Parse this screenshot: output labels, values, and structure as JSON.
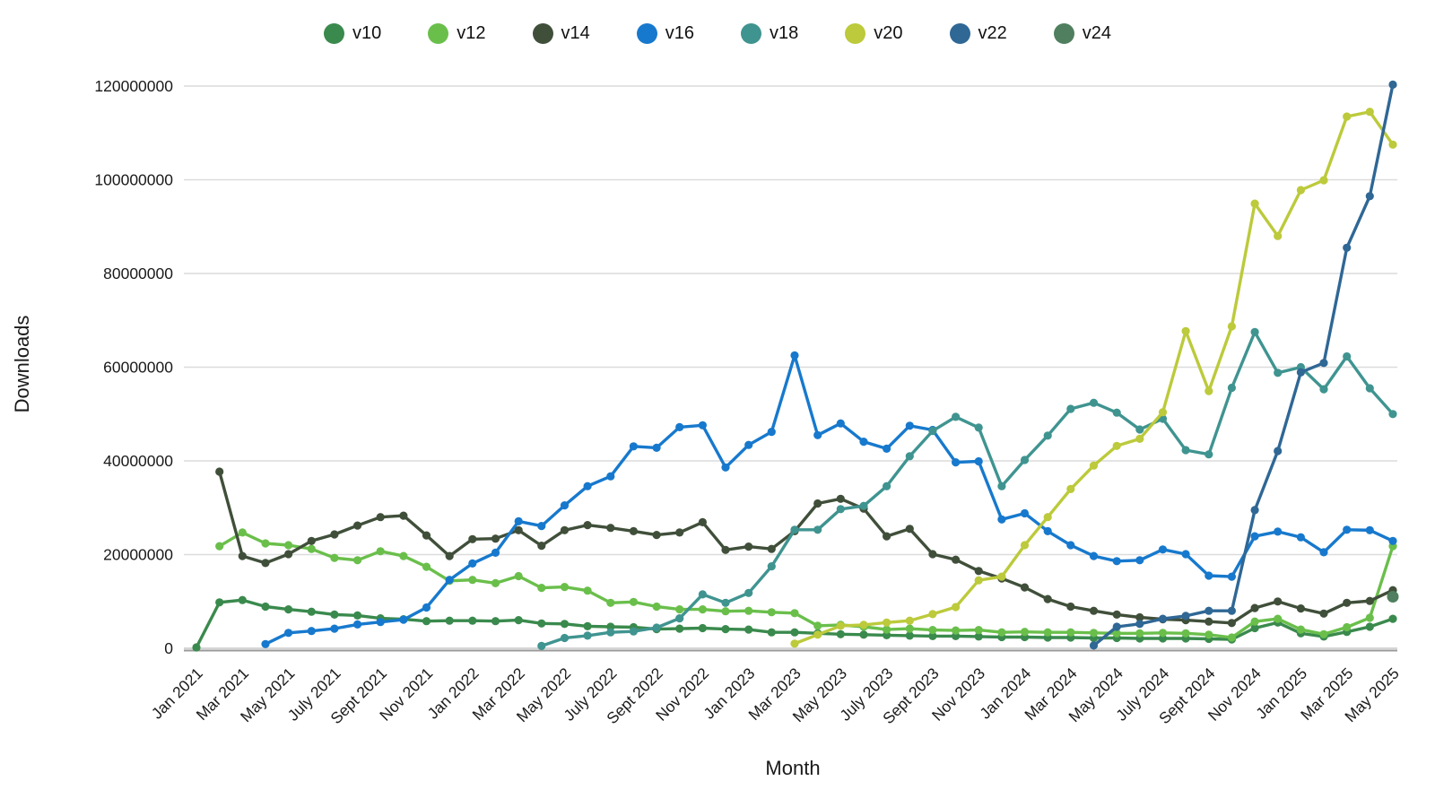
{
  "chart_data": {
    "type": "line",
    "title": "",
    "xlabel": "Month",
    "ylabel": "Downloads",
    "ylim": [
      0,
      120000000
    ],
    "y_ticks": [
      0,
      20000000,
      40000000,
      60000000,
      80000000,
      100000000,
      120000000
    ],
    "grid": "horizontal",
    "legend_position": "top-center",
    "x_tick_labels": [
      "Jan 2021",
      "Mar 2021",
      "May 2021",
      "July 2021",
      "Sept 2021",
      "Nov 2021",
      "Jan 2022",
      "Mar 2022",
      "May 2022",
      "July 2022",
      "Sept 2022",
      "Nov 2022",
      "Jan 2023",
      "Mar 2023",
      "May 2023",
      "July 2023",
      "Sept 2023",
      "Nov 2023",
      "Jan 2024",
      "Mar 2024",
      "May 2024",
      "July 2024",
      "Sept 2024",
      "Nov 2024",
      "Jan 2025",
      "Mar 2025",
      "May 2025"
    ],
    "x_tick_every": 2,
    "month_count": 53,
    "x_range_label": "Jan 2021 to May 2025, monthly",
    "series": [
      {
        "name": "v10",
        "color": "#3a8a4d",
        "values": [
          200000,
          9800000,
          10300000,
          8900000,
          8300000,
          7800000,
          7200000,
          7000000,
          6400000,
          6200000,
          5800000,
          5900000,
          5900000,
          5800000,
          6000000,
          5300000,
          5200000,
          4700000,
          4600000,
          4500000,
          4100000,
          4200000,
          4300000,
          4100000,
          4000000,
          3400000,
          3400000,
          3200000,
          3000000,
          2900000,
          2800000,
          2700000,
          2600000,
          2600000,
          2500000,
          2400000,
          2400000,
          2300000,
          2300000,
          2200000,
          2200000,
          2100000,
          2100000,
          2100000,
          2000000,
          1900000,
          4300000,
          5500000,
          3200000,
          2500000,
          3500000,
          4600000,
          6300000
        ]
      },
      {
        "name": "v12",
        "color": "#6abf4b",
        "values": [
          null,
          21800000,
          24700000,
          22400000,
          22000000,
          21200000,
          19300000,
          18800000,
          20700000,
          19700000,
          17400000,
          14400000,
          14600000,
          13900000,
          15400000,
          12900000,
          13100000,
          12300000,
          9700000,
          9900000,
          8900000,
          8300000,
          8300000,
          7900000,
          8000000,
          7700000,
          7500000,
          4800000,
          5000000,
          4600000,
          4000000,
          4200000,
          3900000,
          3800000,
          3900000,
          3400000,
          3500000,
          3400000,
          3400000,
          3300000,
          3200000,
          3200000,
          3300000,
          3200000,
          2900000,
          2300000,
          5700000,
          6300000,
          4000000,
          3000000,
          4500000,
          6500000,
          21800000
        ]
      },
      {
        "name": "v14",
        "color": "#404f3a",
        "values": [
          null,
          37700000,
          19700000,
          18200000,
          20100000,
          22900000,
          24300000,
          26200000,
          28000000,
          28300000,
          24100000,
          19700000,
          23300000,
          23400000,
          25200000,
          21900000,
          25200000,
          26300000,
          25700000,
          25000000,
          24200000,
          24700000,
          26900000,
          21000000,
          21700000,
          21200000,
          25000000,
          30900000,
          31900000,
          29800000,
          23900000,
          25500000,
          20100000,
          18900000,
          16500000,
          14900000,
          13000000,
          10500000,
          8900000,
          8000000,
          7200000,
          6600000,
          6200000,
          6000000,
          5700000,
          5400000,
          8600000,
          10000000,
          8500000,
          7400000,
          9700000,
          10100000,
          12400000
        ]
      },
      {
        "name": "v16",
        "color": "#1779cd",
        "values": [
          null,
          null,
          null,
          900000,
          3300000,
          3700000,
          4200000,
          5100000,
          5600000,
          6100000,
          8700000,
          14600000,
          18100000,
          20400000,
          27100000,
          26100000,
          30500000,
          34600000,
          36700000,
          43100000,
          42800000,
          47200000,
          47600000,
          38600000,
          43400000,
          46200000,
          62500000,
          45500000,
          48000000,
          44100000,
          42600000,
          47500000,
          46600000,
          39700000,
          39900000,
          27500000,
          28800000,
          25000000,
          22000000,
          19700000,
          18600000,
          18800000,
          21100000,
          20100000,
          15500000,
          15300000,
          23900000,
          24900000,
          23700000,
          20500000,
          25300000,
          25200000,
          22900000
        ]
      },
      {
        "name": "v18",
        "color": "#3f9490",
        "values": [
          null,
          null,
          null,
          null,
          null,
          null,
          null,
          null,
          null,
          null,
          null,
          null,
          null,
          null,
          null,
          500000,
          2200000,
          2700000,
          3400000,
          3600000,
          4400000,
          6400000,
          11500000,
          9700000,
          11800000,
          17500000,
          25300000,
          25300000,
          29700000,
          30400000,
          34600000,
          41000000,
          46400000,
          49400000,
          47100000,
          34600000,
          40200000,
          45400000,
          51100000,
          52400000,
          50300000,
          46700000,
          49000000,
          42300000,
          41400000,
          55600000,
          67500000,
          58800000,
          60000000,
          55300000,
          62300000,
          55500000,
          50000000
        ]
      },
      {
        "name": "v20",
        "color": "#bcca3b",
        "values": [
          null,
          null,
          null,
          null,
          null,
          null,
          null,
          null,
          null,
          null,
          null,
          null,
          null,
          null,
          null,
          null,
          null,
          null,
          null,
          null,
          null,
          null,
          null,
          null,
          null,
          null,
          1000000,
          2900000,
          4800000,
          5000000,
          5500000,
          5900000,
          7300000,
          8800000,
          14500000,
          15300000,
          22000000,
          28000000,
          34000000,
          39000000,
          43200000,
          44700000,
          50400000,
          67700000,
          54900000,
          68700000,
          94900000,
          88000000,
          97800000,
          99900000,
          113500000,
          114500000,
          107500000
        ]
      },
      {
        "name": "v22",
        "color": "#2f6795",
        "values": [
          null,
          null,
          null,
          null,
          null,
          null,
          null,
          null,
          null,
          null,
          null,
          null,
          null,
          null,
          null,
          null,
          null,
          null,
          null,
          null,
          null,
          null,
          null,
          null,
          null,
          null,
          null,
          null,
          null,
          null,
          null,
          null,
          null,
          null,
          null,
          null,
          null,
          null,
          null,
          600000,
          4600000,
          5200000,
          6300000,
          6900000,
          8000000,
          8000000,
          29500000,
          42100000,
          58900000,
          60900000,
          85500000,
          96500000,
          120300000
        ]
      },
      {
        "name": "v24",
        "color": "#4f7f5e",
        "values": [
          null,
          null,
          null,
          null,
          null,
          null,
          null,
          null,
          null,
          null,
          null,
          null,
          null,
          null,
          null,
          null,
          null,
          null,
          null,
          null,
          null,
          null,
          null,
          null,
          null,
          null,
          null,
          null,
          null,
          null,
          null,
          null,
          null,
          null,
          null,
          null,
          null,
          null,
          null,
          null,
          null,
          null,
          null,
          null,
          null,
          null,
          null,
          null,
          null,
          null,
          null,
          null,
          11000000
        ]
      }
    ]
  }
}
